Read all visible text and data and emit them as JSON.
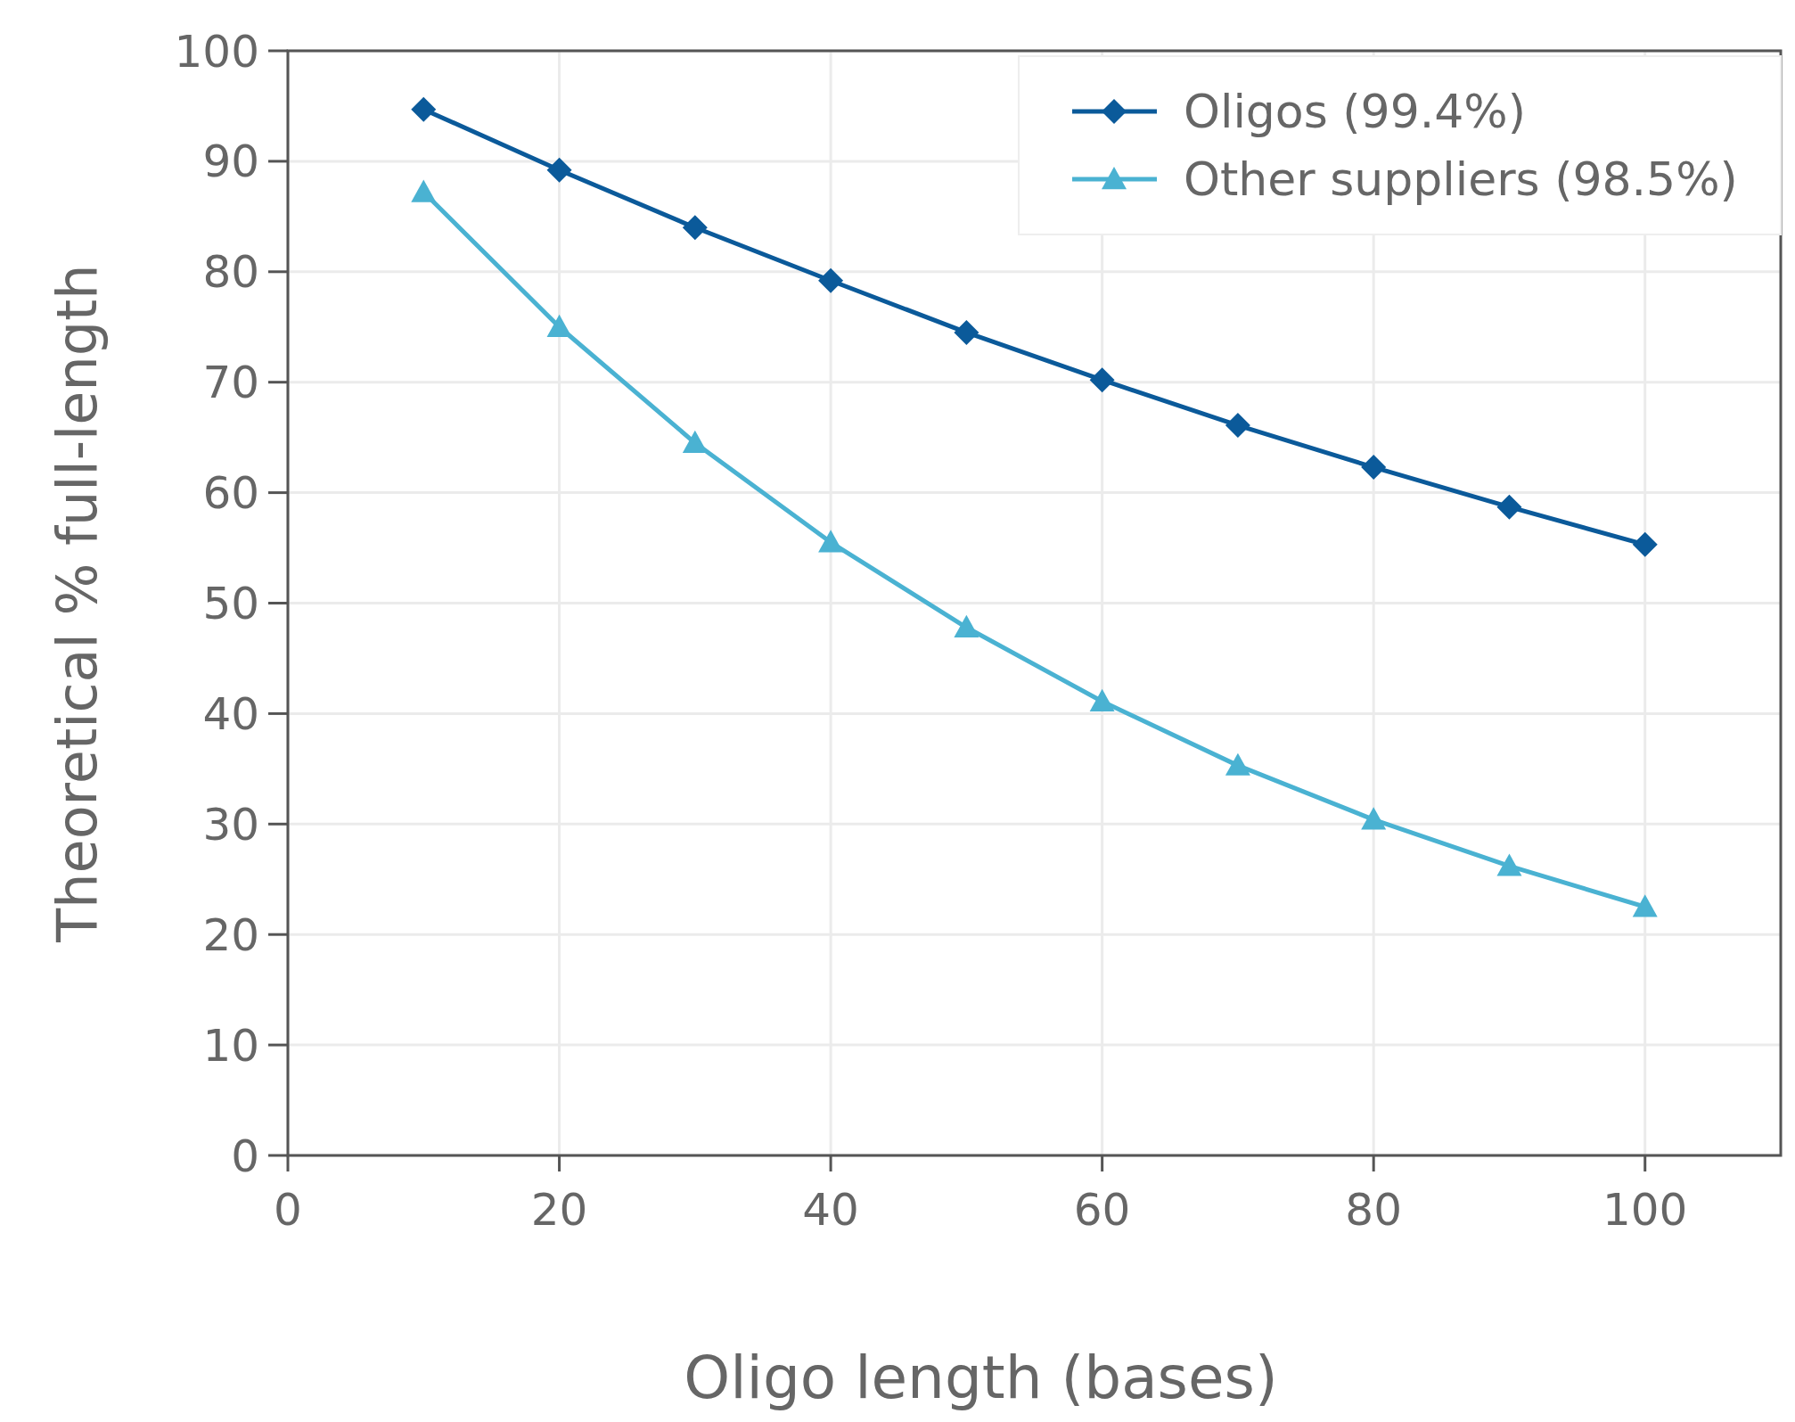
{
  "chart_data": {
    "type": "line",
    "xlabel": "Oligo length (bases)",
    "ylabel": "Theoretical % full-length",
    "x": [
      10,
      20,
      30,
      40,
      50,
      60,
      70,
      80,
      90,
      100
    ],
    "series": [
      {
        "name": "Oligos (99.4%)",
        "color": "#0b5a9a",
        "marker": "diamond",
        "values": [
          94.7,
          89.2,
          84.0,
          79.2,
          74.5,
          70.2,
          66.1,
          62.3,
          58.7,
          55.3
        ]
      },
      {
        "name": "Other suppliers (98.5%)",
        "color": "#4ab2d2",
        "marker": "triangle",
        "values": [
          87.2,
          75.0,
          64.5,
          55.5,
          47.8,
          41.1,
          35.3,
          30.4,
          26.2,
          22.5
        ]
      }
    ],
    "xlim": [
      0,
      110
    ],
    "xticks": [
      0,
      20,
      40,
      60,
      80,
      100
    ],
    "ylim": [
      0,
      100
    ],
    "yticks": [
      0,
      10,
      20,
      30,
      40,
      50,
      60,
      70,
      80,
      90,
      100
    ],
    "grid": true,
    "legend": "top right",
    "line_style": "solid"
  }
}
